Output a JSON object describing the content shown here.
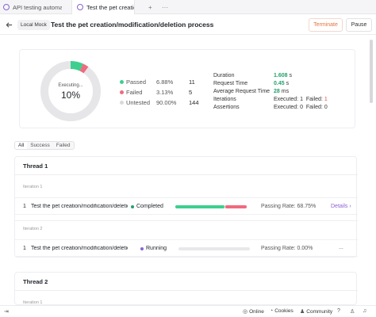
{
  "tabs": [
    {
      "label": "API testing automati",
      "active": false
    },
    {
      "label": "Test the pet creation",
      "active": true
    }
  ],
  "tab_controls": {
    "new_tab": "+",
    "more": "···"
  },
  "header": {
    "back_icon": "‹",
    "environment": "Local Mock",
    "title": "Test the pet creation/modification/deletion process",
    "terminate_label": "Terminate",
    "pause_label": "Pause"
  },
  "summary": {
    "progress_label": "Executing...",
    "progress_value": "10%",
    "progress_fraction": 0.1,
    "passed_fraction": 0.0688,
    "failed_fraction": 0.0313,
    "stats": [
      {
        "name": "Passed",
        "percent": "6.88%",
        "count": "11",
        "color": "#3ecf8e"
      },
      {
        "name": "Failed",
        "percent": "3.13%",
        "count": "5",
        "color": "#f06a7e"
      },
      {
        "name": "Untested",
        "percent": "90.00%",
        "count": "144",
        "color": "#d9d9dc"
      }
    ],
    "info": {
      "duration_label": "Duration",
      "duration_value": "1.608",
      "duration_unit": " s",
      "request_time_label": "Request Time",
      "request_time_value": "0.45",
      "request_time_unit": " s",
      "avg_request_label": "Average Request Time",
      "avg_request_value": "28",
      "avg_request_unit": " ms",
      "iterations_label": "Iterations",
      "iterations_exec": "Executed: 1",
      "iterations_failed_label": "Failed: ",
      "iterations_failed": "1",
      "assertions_label": "Assertions",
      "assertions_exec": "Executed: 0",
      "assertions_failed": "Failed: 0"
    }
  },
  "filters": [
    "All",
    "Success",
    "Failed"
  ],
  "threads": [
    {
      "title": "Thread 1",
      "iterations": [
        {
          "label": "Iteration 1",
          "num": "1",
          "name": "Test the pet creation/modification/deletion process",
          "status": "Completed",
          "status_color": "#22a06b",
          "pass_fraction": 0.6875,
          "pass_rate": "Passing Rate: 68.75%",
          "action": "Details ›"
        },
        {
          "label": "Iteration 2",
          "num": "1",
          "name": "Test the pet creation/modification/deletion process",
          "status": "Running",
          "status_color": "#8a63d2",
          "pass_fraction": 0,
          "pass_rate": "Passing Rate: 0.00%",
          "action": "..."
        }
      ]
    },
    {
      "title": "Thread 2",
      "iterations": [
        {
          "label": "Iteration 1"
        }
      ]
    }
  ],
  "statusbar": {
    "online": "Online",
    "cookies": "Cookies",
    "community": "Community"
  }
}
